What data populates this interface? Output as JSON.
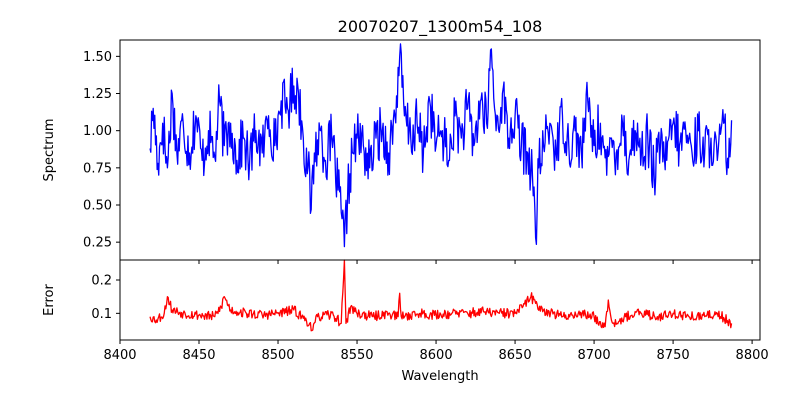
{
  "chart_data": {
    "type": "line",
    "title": "20070207_1300m54_108",
    "xlabel": "Wavelength",
    "xlim": [
      8400,
      8805
    ],
    "xticks": [
      8400,
      8450,
      8500,
      8550,
      8600,
      8650,
      8700,
      8750,
      8800
    ],
    "panels": [
      {
        "name": "spectrum",
        "ylabel": "Spectrum",
        "ylim": [
          0.13,
          1.61
        ],
        "yticks": [
          0.25,
          0.5,
          0.75,
          1.0,
          1.25,
          1.5
        ],
        "ytick_labels": [
          "0.25",
          "0.50",
          "0.75",
          "1.00",
          "1.25",
          "1.50"
        ],
        "color": "#0000ff",
        "x_start": 8419,
        "x_end": 8787,
        "keypoints": [
          [
            8419,
            0.88
          ],
          [
            8421,
            1.15
          ],
          [
            8424,
            0.78
          ],
          [
            8427,
            1.05
          ],
          [
            8430,
            0.75
          ],
          [
            8433,
            1.25
          ],
          [
            8436,
            0.85
          ],
          [
            8440,
            1.05
          ],
          [
            8444,
            0.85
          ],
          [
            8448,
            1.1
          ],
          [
            8452,
            0.8
          ],
          [
            8456,
            1.0
          ],
          [
            8460,
            0.82
          ],
          [
            8463,
            1.2
          ],
          [
            8466,
            0.9
          ],
          [
            8470,
            1.05
          ],
          [
            8474,
            0.8
          ],
          [
            8478,
            0.95
          ],
          [
            8482,
            0.78
          ],
          [
            8486,
            1.0
          ],
          [
            8490,
            0.85
          ],
          [
            8494,
            1.1
          ],
          [
            8498,
            0.9
          ],
          [
            8502,
            1.2
          ],
          [
            8506,
            1.15
          ],
          [
            8510,
            1.3
          ],
          [
            8513,
            1.25
          ],
          [
            8516,
            0.95
          ],
          [
            8519,
            0.75
          ],
          [
            8521,
            0.47
          ],
          [
            8523,
            0.85
          ],
          [
            8527,
            1.0
          ],
          [
            8530,
            0.8
          ],
          [
            8534,
            0.95
          ],
          [
            8538,
            0.6
          ],
          [
            8540,
            0.45
          ],
          [
            8542,
            0.22
          ],
          [
            8544,
            0.55
          ],
          [
            8547,
            0.85
          ],
          [
            8550,
            0.95
          ],
          [
            8554,
            0.9
          ],
          [
            8558,
            0.75
          ],
          [
            8562,
            0.95
          ],
          [
            8566,
            1.0
          ],
          [
            8570,
            0.85
          ],
          [
            8574,
            1.1
          ],
          [
            8577,
            1.5
          ],
          [
            8580,
            1.1
          ],
          [
            8584,
            0.95
          ],
          [
            8588,
            1.05
          ],
          [
            8592,
            0.85
          ],
          [
            8596,
            1.2
          ],
          [
            8600,
            0.9
          ],
          [
            8604,
            1.0
          ],
          [
            8608,
            0.8
          ],
          [
            8612,
            1.1
          ],
          [
            8616,
            0.95
          ],
          [
            8620,
            1.15
          ],
          [
            8624,
            0.9
          ],
          [
            8628,
            1.2
          ],
          [
            8632,
            1.05
          ],
          [
            8635,
            1.55
          ],
          [
            8638,
            1.0
          ],
          [
            8642,
            1.25
          ],
          [
            8646,
            0.95
          ],
          [
            8650,
            1.1
          ],
          [
            8654,
            0.9
          ],
          [
            8658,
            0.85
          ],
          [
            8661,
            0.7
          ],
          [
            8663,
            0.28
          ],
          [
            8665,
            0.75
          ],
          [
            8668,
            0.9
          ],
          [
            8672,
            1.05
          ],
          [
            8676,
            0.85
          ],
          [
            8680,
            1.1
          ],
          [
            8684,
            0.9
          ],
          [
            8688,
            1.0
          ],
          [
            8692,
            0.85
          ],
          [
            8696,
            1.2
          ],
          [
            8700,
            0.9
          ],
          [
            8704,
            1.05
          ],
          [
            8708,
            0.7
          ],
          [
            8711,
            0.95
          ],
          [
            8714,
            0.85
          ],
          [
            8718,
            1.05
          ],
          [
            8722,
            0.8
          ],
          [
            8726,
            1.0
          ],
          [
            8730,
            0.85
          ],
          [
            8734,
            0.95
          ],
          [
            8738,
            0.7
          ],
          [
            8742,
            0.9
          ],
          [
            8746,
            0.8
          ],
          [
            8750,
            1.05
          ],
          [
            8754,
            0.9
          ],
          [
            8758,
            1.0
          ],
          [
            8762,
            0.85
          ],
          [
            8766,
            1.0
          ],
          [
            8770,
            0.85
          ],
          [
            8774,
            0.95
          ],
          [
            8778,
            0.8
          ],
          [
            8782,
            1.05
          ],
          [
            8785,
            0.75
          ],
          [
            8787,
            1.07
          ]
        ],
        "noise_amplitude": 0.18,
        "seed": 17
      },
      {
        "name": "error",
        "ylabel": "Error",
        "ylim": [
          0.02,
          0.26
        ],
        "yticks": [
          0.1,
          0.2
        ],
        "ytick_labels": [
          "0.1",
          "0.2"
        ],
        "color": "#ff0000",
        "x_start": 8419,
        "x_end": 8787,
        "keypoints": [
          [
            8419,
            0.09
          ],
          [
            8423,
            0.08
          ],
          [
            8428,
            0.1
          ],
          [
            8430,
            0.15
          ],
          [
            8433,
            0.11
          ],
          [
            8440,
            0.1
          ],
          [
            8450,
            0.095
          ],
          [
            8460,
            0.09
          ],
          [
            8464,
            0.12
          ],
          [
            8466,
            0.15
          ],
          [
            8470,
            0.11
          ],
          [
            8480,
            0.1
          ],
          [
            8490,
            0.095
          ],
          [
            8500,
            0.1
          ],
          [
            8510,
            0.11
          ],
          [
            8515,
            0.09
          ],
          [
            8520,
            0.07
          ],
          [
            8522,
            0.05
          ],
          [
            8525,
            0.09
          ],
          [
            8535,
            0.095
          ],
          [
            8540,
            0.07
          ],
          [
            8542,
            0.26
          ],
          [
            8543,
            0.07
          ],
          [
            8546,
            0.12
          ],
          [
            8550,
            0.1
          ],
          [
            8560,
            0.09
          ],
          [
            8570,
            0.1
          ],
          [
            8576,
            0.09
          ],
          [
            8577,
            0.16
          ],
          [
            8578,
            0.09
          ],
          [
            8590,
            0.1
          ],
          [
            8600,
            0.095
          ],
          [
            8610,
            0.1
          ],
          [
            8620,
            0.1
          ],
          [
            8630,
            0.105
          ],
          [
            8640,
            0.1
          ],
          [
            8650,
            0.1
          ],
          [
            8655,
            0.12
          ],
          [
            8660,
            0.15
          ],
          [
            8663,
            0.13
          ],
          [
            8668,
            0.11
          ],
          [
            8680,
            0.09
          ],
          [
            8690,
            0.1
          ],
          [
            8700,
            0.09
          ],
          [
            8707,
            0.06
          ],
          [
            8709,
            0.14
          ],
          [
            8712,
            0.07
          ],
          [
            8720,
            0.09
          ],
          [
            8730,
            0.1
          ],
          [
            8740,
            0.09
          ],
          [
            8750,
            0.1
          ],
          [
            8760,
            0.09
          ],
          [
            8770,
            0.09
          ],
          [
            8778,
            0.1
          ],
          [
            8787,
            0.07
          ]
        ],
        "noise_amplitude": 0.015,
        "seed": 53
      }
    ]
  }
}
